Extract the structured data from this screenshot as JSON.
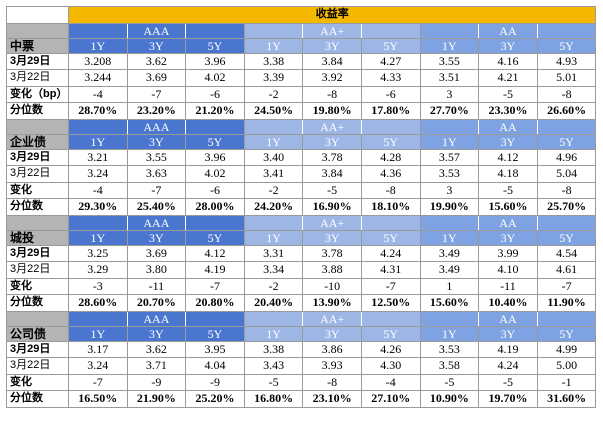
{
  "title": "收益率",
  "grades": [
    "AAA",
    "AA+",
    "AA"
  ],
  "tenors": [
    "1Y",
    "3Y",
    "5Y"
  ],
  "sections": [
    {
      "name": "中票",
      "rows": [
        {
          "label": "3月29日",
          "values": [
            "3.208",
            "3.62",
            "3.96",
            "3.38",
            "3.84",
            "4.27",
            "3.55",
            "4.16",
            "4.93"
          ]
        },
        {
          "label": "3月22日",
          "values": [
            "3.244",
            "3.69",
            "4.02",
            "3.39",
            "3.92",
            "4.33",
            "3.51",
            "4.21",
            "5.01"
          ]
        },
        {
          "label": "变化（bp）",
          "values": [
            "-4",
            "-7",
            "-6",
            "-2",
            "-8",
            "-6",
            "3",
            "-5",
            "-8"
          ]
        },
        {
          "label": "分位数",
          "values": [
            "28.70%",
            "23.20%",
            "21.20%",
            "24.50%",
            "19.80%",
            "17.80%",
            "27.70%",
            "23.30%",
            "26.60%"
          ]
        }
      ]
    },
    {
      "name": "企业债",
      "rows": [
        {
          "label": "3月29日",
          "values": [
            "3.21",
            "3.55",
            "3.96",
            "3.40",
            "3.78",
            "4.28",
            "3.57",
            "4.12",
            "4.96"
          ]
        },
        {
          "label": "3月22日",
          "values": [
            "3.24",
            "3.63",
            "4.02",
            "3.41",
            "3.84",
            "4.36",
            "3.53",
            "4.18",
            "5.04"
          ]
        },
        {
          "label": "变化",
          "values": [
            "-4",
            "-7",
            "-6",
            "-2",
            "-5",
            "-8",
            "3",
            "-5",
            "-8"
          ]
        },
        {
          "label": "分位数",
          "values": [
            "29.30%",
            "25.40%",
            "28.00%",
            "24.20%",
            "16.90%",
            "18.10%",
            "19.90%",
            "15.60%",
            "25.70%"
          ]
        }
      ]
    },
    {
      "name": "城投",
      "rows": [
        {
          "label": "3月29日",
          "values": [
            "3.25",
            "3.69",
            "4.12",
            "3.31",
            "3.78",
            "4.24",
            "3.49",
            "3.99",
            "4.54"
          ]
        },
        {
          "label": "3月22日",
          "values": [
            "3.29",
            "3.80",
            "4.19",
            "3.34",
            "3.88",
            "4.31",
            "3.49",
            "4.10",
            "4.61"
          ]
        },
        {
          "label": "变化",
          "values": [
            "-3",
            "-11",
            "-7",
            "-2",
            "-10",
            "-7",
            "1",
            "-11",
            "-7"
          ]
        },
        {
          "label": "分位数",
          "values": [
            "28.60%",
            "20.70%",
            "20.80%",
            "20.40%",
            "13.90%",
            "12.50%",
            "15.60%",
            "10.40%",
            "11.90%"
          ]
        }
      ]
    },
    {
      "name": "公司债",
      "rows": [
        {
          "label": "3月29日",
          "values": [
            "3.17",
            "3.62",
            "3.95",
            "3.38",
            "3.86",
            "4.26",
            "3.53",
            "4.19",
            "4.99"
          ]
        },
        {
          "label": "3月22日",
          "values": [
            "3.24",
            "3.71",
            "4.04",
            "3.43",
            "3.93",
            "4.30",
            "3.58",
            "4.24",
            "5.00"
          ]
        },
        {
          "label": "变化",
          "values": [
            "-7",
            "-9",
            "-9",
            "-5",
            "-8",
            "-4",
            "-5",
            "-5",
            "-1"
          ]
        },
        {
          "label": "分位数",
          "values": [
            "16.50%",
            "21.90%",
            "25.20%",
            "16.80%",
            "23.10%",
            "27.10%",
            "10.90%",
            "19.70%",
            "31.60%"
          ]
        }
      ]
    }
  ]
}
